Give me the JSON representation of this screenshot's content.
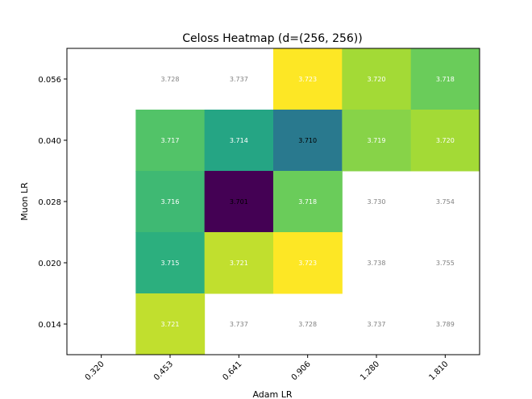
{
  "chart_data": {
    "type": "heatmap",
    "title": "Celoss Heatmap (d=(256, 256))",
    "xlabel": "Adam LR",
    "ylabel": "Muon LR",
    "x_categories": [
      "0.320",
      "0.453",
      "0.641",
      "0.906",
      "1.280",
      "1.810"
    ],
    "y_categories": [
      "0.056",
      "0.040",
      "0.028",
      "0.020",
      "0.014"
    ],
    "colormap": "viridis",
    "color_range": [
      3.701,
      3.723
    ],
    "values": [
      [
        null,
        3.728,
        3.737,
        3.723,
        3.72,
        3.718
      ],
      [
        null,
        3.717,
        3.714,
        3.71,
        3.719,
        3.72
      ],
      [
        null,
        3.716,
        3.701,
        3.718,
        3.73,
        3.754
      ],
      [
        null,
        3.715,
        3.721,
        3.723,
        3.738,
        3.755
      ],
      [
        null,
        3.721,
        3.737,
        3.728,
        3.737,
        3.789
      ]
    ],
    "colored": [
      [
        false,
        false,
        false,
        true,
        true,
        true
      ],
      [
        false,
        true,
        true,
        true,
        true,
        true
      ],
      [
        false,
        true,
        true,
        true,
        false,
        false
      ],
      [
        false,
        true,
        true,
        true,
        false,
        false
      ],
      [
        false,
        true,
        false,
        false,
        false,
        false
      ]
    ],
    "labels": [
      [
        null,
        "3.728",
        "3.737",
        "3.723",
        "3.720",
        "3.718"
      ],
      [
        null,
        "3.717",
        "3.714",
        "3.710",
        "3.719",
        "3.720"
      ],
      [
        null,
        "3.716",
        "3.701",
        "3.718",
        "3.730",
        "3.754"
      ],
      [
        null,
        "3.715",
        "3.721",
        "3.723",
        "3.738",
        "3.755"
      ],
      [
        null,
        "3.721",
        "3.737",
        "3.728",
        "3.737",
        "3.789"
      ]
    ],
    "grid": false,
    "legend": "none"
  }
}
